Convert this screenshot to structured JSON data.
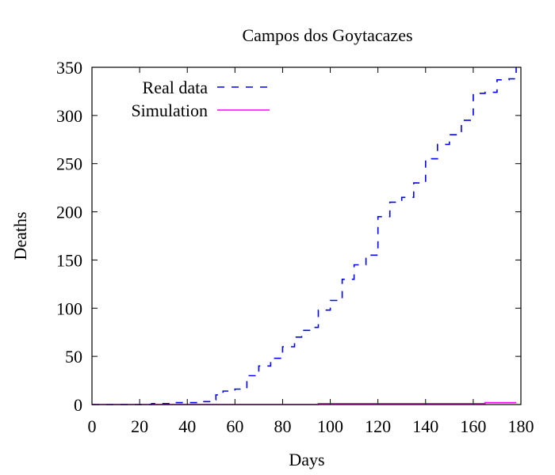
{
  "chart_data": {
    "type": "line",
    "title": "Campos dos Goytacazes",
    "xlabel": "Days",
    "ylabel": "Deaths",
    "xlim": [
      0,
      180
    ],
    "ylim": [
      0,
      350
    ],
    "xticks": [
      0,
      20,
      40,
      60,
      80,
      100,
      120,
      140,
      160,
      180
    ],
    "yticks": [
      0,
      50,
      100,
      150,
      200,
      250,
      300,
      350
    ],
    "grid": false,
    "legend_position": "top-left",
    "series": [
      {
        "name": "Real data",
        "color": "#0000ff",
        "dash": "dashed",
        "x": [
          0,
          20,
          25,
          30,
          35,
          40,
          45,
          50,
          52,
          55,
          60,
          63,
          65,
          70,
          75,
          80,
          85,
          88,
          92,
          95,
          100,
          105,
          110,
          115,
          120,
          125,
          130,
          135,
          140,
          145,
          150,
          155,
          160,
          163,
          165,
          170,
          175,
          178
        ],
        "y": [
          0,
          0,
          1,
          1,
          2,
          2,
          3,
          5,
          10,
          14,
          16,
          16,
          30,
          40,
          48,
          60,
          70,
          77,
          80,
          98,
          108,
          130,
          145,
          155,
          195,
          210,
          215,
          230,
          255,
          270,
          280,
          295,
          323,
          323,
          324,
          337,
          338,
          350
        ]
      },
      {
        "name": "Simulation",
        "color": "#ff00ff",
        "dash": "solid",
        "x": [
          0,
          20,
          40,
          60,
          80,
          90,
          95,
          100,
          120,
          140,
          160,
          163,
          165,
          170,
          175,
          178
        ],
        "y": [
          0,
          0,
          0,
          0,
          0,
          0,
          1,
          1,
          1,
          1,
          1,
          1,
          2,
          2,
          2,
          2
        ]
      }
    ]
  }
}
